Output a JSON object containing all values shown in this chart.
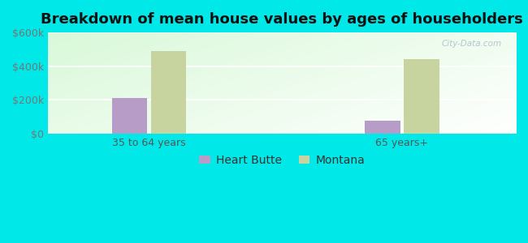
{
  "title": "Breakdown of mean house values by ages of householders",
  "categories": [
    "35 to 64 years",
    "65 years+"
  ],
  "series": [
    {
      "name": "Heart Butte",
      "values": [
        210000,
        75000
      ],
      "color": "#b89cc8"
    },
    {
      "name": "Montana",
      "values": [
        490000,
        440000
      ],
      "color": "#c8d4a0"
    }
  ],
  "ylim": [
    0,
    600000
  ],
  "yticks": [
    0,
    200000,
    400000,
    600000
  ],
  "ytick_labels": [
    "$0",
    "$200k",
    "$400k",
    "$600k"
  ],
  "background_color": "#00e8e8",
  "bar_width": 0.28,
  "title_fontsize": 13,
  "legend_fontsize": 10,
  "tick_fontsize": 9,
  "group_centers": [
    1.0,
    3.0
  ],
  "xlim": [
    0.2,
    3.9
  ]
}
